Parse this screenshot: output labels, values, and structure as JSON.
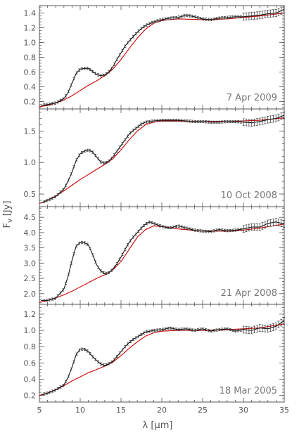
{
  "chart_data": {
    "type": "line",
    "shared_x": {
      "label_parts": [
        "λ [",
        "μ",
        "m]"
      ],
      "ticks": [
        5,
        10,
        15,
        20,
        25,
        30,
        35
      ],
      "range": [
        5,
        35
      ]
    },
    "shared_y_label_parts": [
      "F",
      "ν",
      " [Jy]"
    ],
    "colors": {
      "observed": "#111111",
      "model": "#cc0000",
      "frame": "#555555"
    },
    "panels": [
      {
        "date": "7 Apr 2009",
        "ylim": [
          0.1,
          1.5
        ],
        "yticks": [
          0.2,
          0.4,
          0.6,
          0.8,
          1.0,
          1.2,
          1.4
        ],
        "ytick_labels": [
          "0.2",
          "0.4",
          "0.6",
          "0.8",
          "1.0",
          "1.2",
          "1.4"
        ],
        "observed": {
          "x": [
            5.2,
            6,
            7,
            8,
            8.5,
            9,
            9.5,
            10,
            10.5,
            11,
            11.5,
            12,
            12.5,
            13,
            13.5,
            14,
            14.5,
            15,
            15.5,
            16,
            16.5,
            17,
            17.5,
            18,
            19,
            20,
            21,
            22,
            23,
            24,
            25,
            26,
            27,
            28,
            29,
            30,
            31,
            32,
            33,
            34,
            35
          ],
          "y": [
            0.15,
            0.16,
            0.18,
            0.24,
            0.32,
            0.45,
            0.58,
            0.64,
            0.65,
            0.65,
            0.61,
            0.57,
            0.55,
            0.56,
            0.6,
            0.67,
            0.77,
            0.86,
            0.95,
            1.02,
            1.08,
            1.14,
            1.19,
            1.23,
            1.28,
            1.31,
            1.33,
            1.34,
            1.37,
            1.35,
            1.32,
            1.31,
            1.33,
            1.34,
            1.35,
            1.35,
            1.36,
            1.37,
            1.39,
            1.4,
            1.45
          ]
        },
        "model": {
          "x": [
            5,
            6,
            7,
            8,
            9,
            10,
            11,
            12,
            13,
            14,
            15,
            16,
            17,
            18,
            19,
            20,
            22,
            25,
            28,
            30,
            32,
            35
          ],
          "y": [
            0.13,
            0.15,
            0.18,
            0.22,
            0.28,
            0.35,
            0.42,
            0.48,
            0.55,
            0.64,
            0.77,
            0.92,
            1.06,
            1.18,
            1.26,
            1.3,
            1.32,
            1.31,
            1.32,
            1.34,
            1.36,
            1.4
          ]
        }
      },
      {
        "date": "10 Oct 2008",
        "ylim": [
          0.3,
          1.85
        ],
        "yticks": [
          0.5,
          1.0,
          1.5
        ],
        "ytick_labels": [
          "0.5",
          "1.0",
          "1.5"
        ],
        "observed": {
          "x": [
            5.2,
            6,
            7,
            8,
            8.5,
            9,
            9.5,
            10,
            10.5,
            11,
            11.5,
            12,
            12.5,
            13,
            13.5,
            14,
            14.5,
            15,
            15.5,
            16,
            16.5,
            17,
            17.5,
            18,
            19,
            20,
            21,
            22,
            23,
            24,
            25,
            26,
            27,
            28,
            29,
            30,
            31,
            32,
            33,
            34,
            35
          ],
          "y": [
            0.36,
            0.4,
            0.46,
            0.58,
            0.7,
            0.85,
            1.03,
            1.14,
            1.18,
            1.2,
            1.17,
            1.09,
            1.01,
            0.99,
            1.02,
            1.09,
            1.18,
            1.27,
            1.36,
            1.45,
            1.51,
            1.56,
            1.61,
            1.64,
            1.66,
            1.67,
            1.67,
            1.67,
            1.66,
            1.65,
            1.65,
            1.64,
            1.64,
            1.65,
            1.65,
            1.64,
            1.63,
            1.65,
            1.68,
            1.7,
            1.75
          ]
        },
        "model": {
          "x": [
            5,
            6,
            7,
            8,
            9,
            10,
            11,
            12,
            13,
            14,
            15,
            16,
            17,
            18,
            19,
            20,
            22,
            25,
            28,
            30,
            32,
            35
          ],
          "y": [
            0.35,
            0.4,
            0.47,
            0.55,
            0.64,
            0.73,
            0.81,
            0.89,
            0.97,
            1.06,
            1.2,
            1.36,
            1.5,
            1.6,
            1.64,
            1.66,
            1.66,
            1.65,
            1.65,
            1.66,
            1.67,
            1.71
          ]
        }
      },
      {
        "date": "21 Apr 2008",
        "ylim": [
          1.65,
          4.85
        ],
        "yticks": [
          2.0,
          2.5,
          3.0,
          3.5,
          4.0,
          4.5
        ],
        "ytick_labels": [
          "2.0",
          "2.5",
          "3.0",
          "3.5",
          "4.0",
          "4.5"
        ],
        "observed": {
          "x": [
            5.2,
            6,
            7,
            8,
            8.5,
            9,
            9.5,
            10,
            10.5,
            11,
            11.5,
            12,
            12.5,
            13,
            13.5,
            14,
            14.5,
            15,
            15.5,
            16,
            16.5,
            17,
            17.5,
            18,
            18.5,
            19,
            20,
            21,
            22,
            23,
            24,
            25,
            26,
            27,
            28,
            29,
            30,
            31,
            32,
            33,
            34,
            35
          ],
          "y": [
            1.78,
            1.78,
            1.85,
            2.15,
            2.55,
            3.1,
            3.55,
            3.68,
            3.67,
            3.6,
            3.3,
            2.95,
            2.75,
            2.66,
            2.68,
            2.8,
            2.98,
            3.2,
            3.45,
            3.68,
            3.85,
            4.0,
            4.15,
            4.28,
            4.35,
            4.3,
            4.2,
            4.15,
            4.22,
            4.15,
            4.08,
            4.05,
            4.03,
            4.1,
            4.06,
            4.08,
            4.12,
            4.18,
            4.18,
            4.3,
            4.35,
            4.28
          ]
        },
        "model": {
          "x": [
            5,
            6,
            7,
            8,
            9,
            10,
            11,
            12,
            13,
            14,
            15,
            16,
            17,
            18,
            19,
            20,
            22,
            25,
            28,
            30,
            32,
            35
          ],
          "y": [
            1.72,
            1.78,
            1.86,
            1.96,
            2.08,
            2.22,
            2.36,
            2.5,
            2.62,
            2.78,
            3.05,
            3.45,
            3.85,
            4.1,
            4.22,
            4.2,
            4.12,
            4.05,
            4.05,
            4.08,
            4.15,
            4.28
          ]
        }
      },
      {
        "date": "18 Mar 2005",
        "ylim": [
          0.12,
          1.32
        ],
        "yticks": [
          0.2,
          0.4,
          0.6,
          0.8,
          1.0,
          1.2
        ],
        "ytick_labels": [
          "0.2",
          "0.4",
          "0.6",
          "0.8",
          "1.0",
          "1.2"
        ],
        "observed": {
          "x": [
            5.2,
            6,
            7,
            8,
            8.5,
            9,
            9.5,
            10,
            10.5,
            11,
            11.5,
            12,
            12.5,
            13,
            13.5,
            14,
            14.5,
            15,
            15.5,
            16,
            16.5,
            17,
            17.5,
            18,
            19,
            20,
            21,
            22,
            23,
            24,
            25,
            26,
            27,
            28,
            29,
            30,
            31,
            32,
            33,
            34,
            35
          ],
          "y": [
            0.21,
            0.23,
            0.27,
            0.33,
            0.42,
            0.55,
            0.7,
            0.77,
            0.77,
            0.74,
            0.68,
            0.63,
            0.59,
            0.57,
            0.59,
            0.62,
            0.68,
            0.74,
            0.8,
            0.85,
            0.89,
            0.92,
            0.95,
            0.98,
            1.0,
            1.01,
            1.03,
            1.01,
            1.02,
            1.0,
            1.02,
            0.99,
            1.01,
            1.02,
            0.99,
            1.01,
            1.0,
            1.03,
            1.02,
            1.05,
            1.12
          ]
        },
        "model": {
          "x": [
            5,
            6,
            7,
            8,
            9,
            10,
            11,
            12,
            13,
            14,
            15,
            16,
            17,
            18,
            19,
            20,
            22,
            25,
            28,
            30,
            32,
            35
          ],
          "y": [
            0.2,
            0.23,
            0.27,
            0.32,
            0.38,
            0.43,
            0.48,
            0.52,
            0.56,
            0.61,
            0.69,
            0.78,
            0.86,
            0.93,
            0.97,
            0.99,
            1.0,
            1.0,
            1.01,
            1.02,
            1.03,
            1.08
          ]
        }
      }
    ]
  }
}
